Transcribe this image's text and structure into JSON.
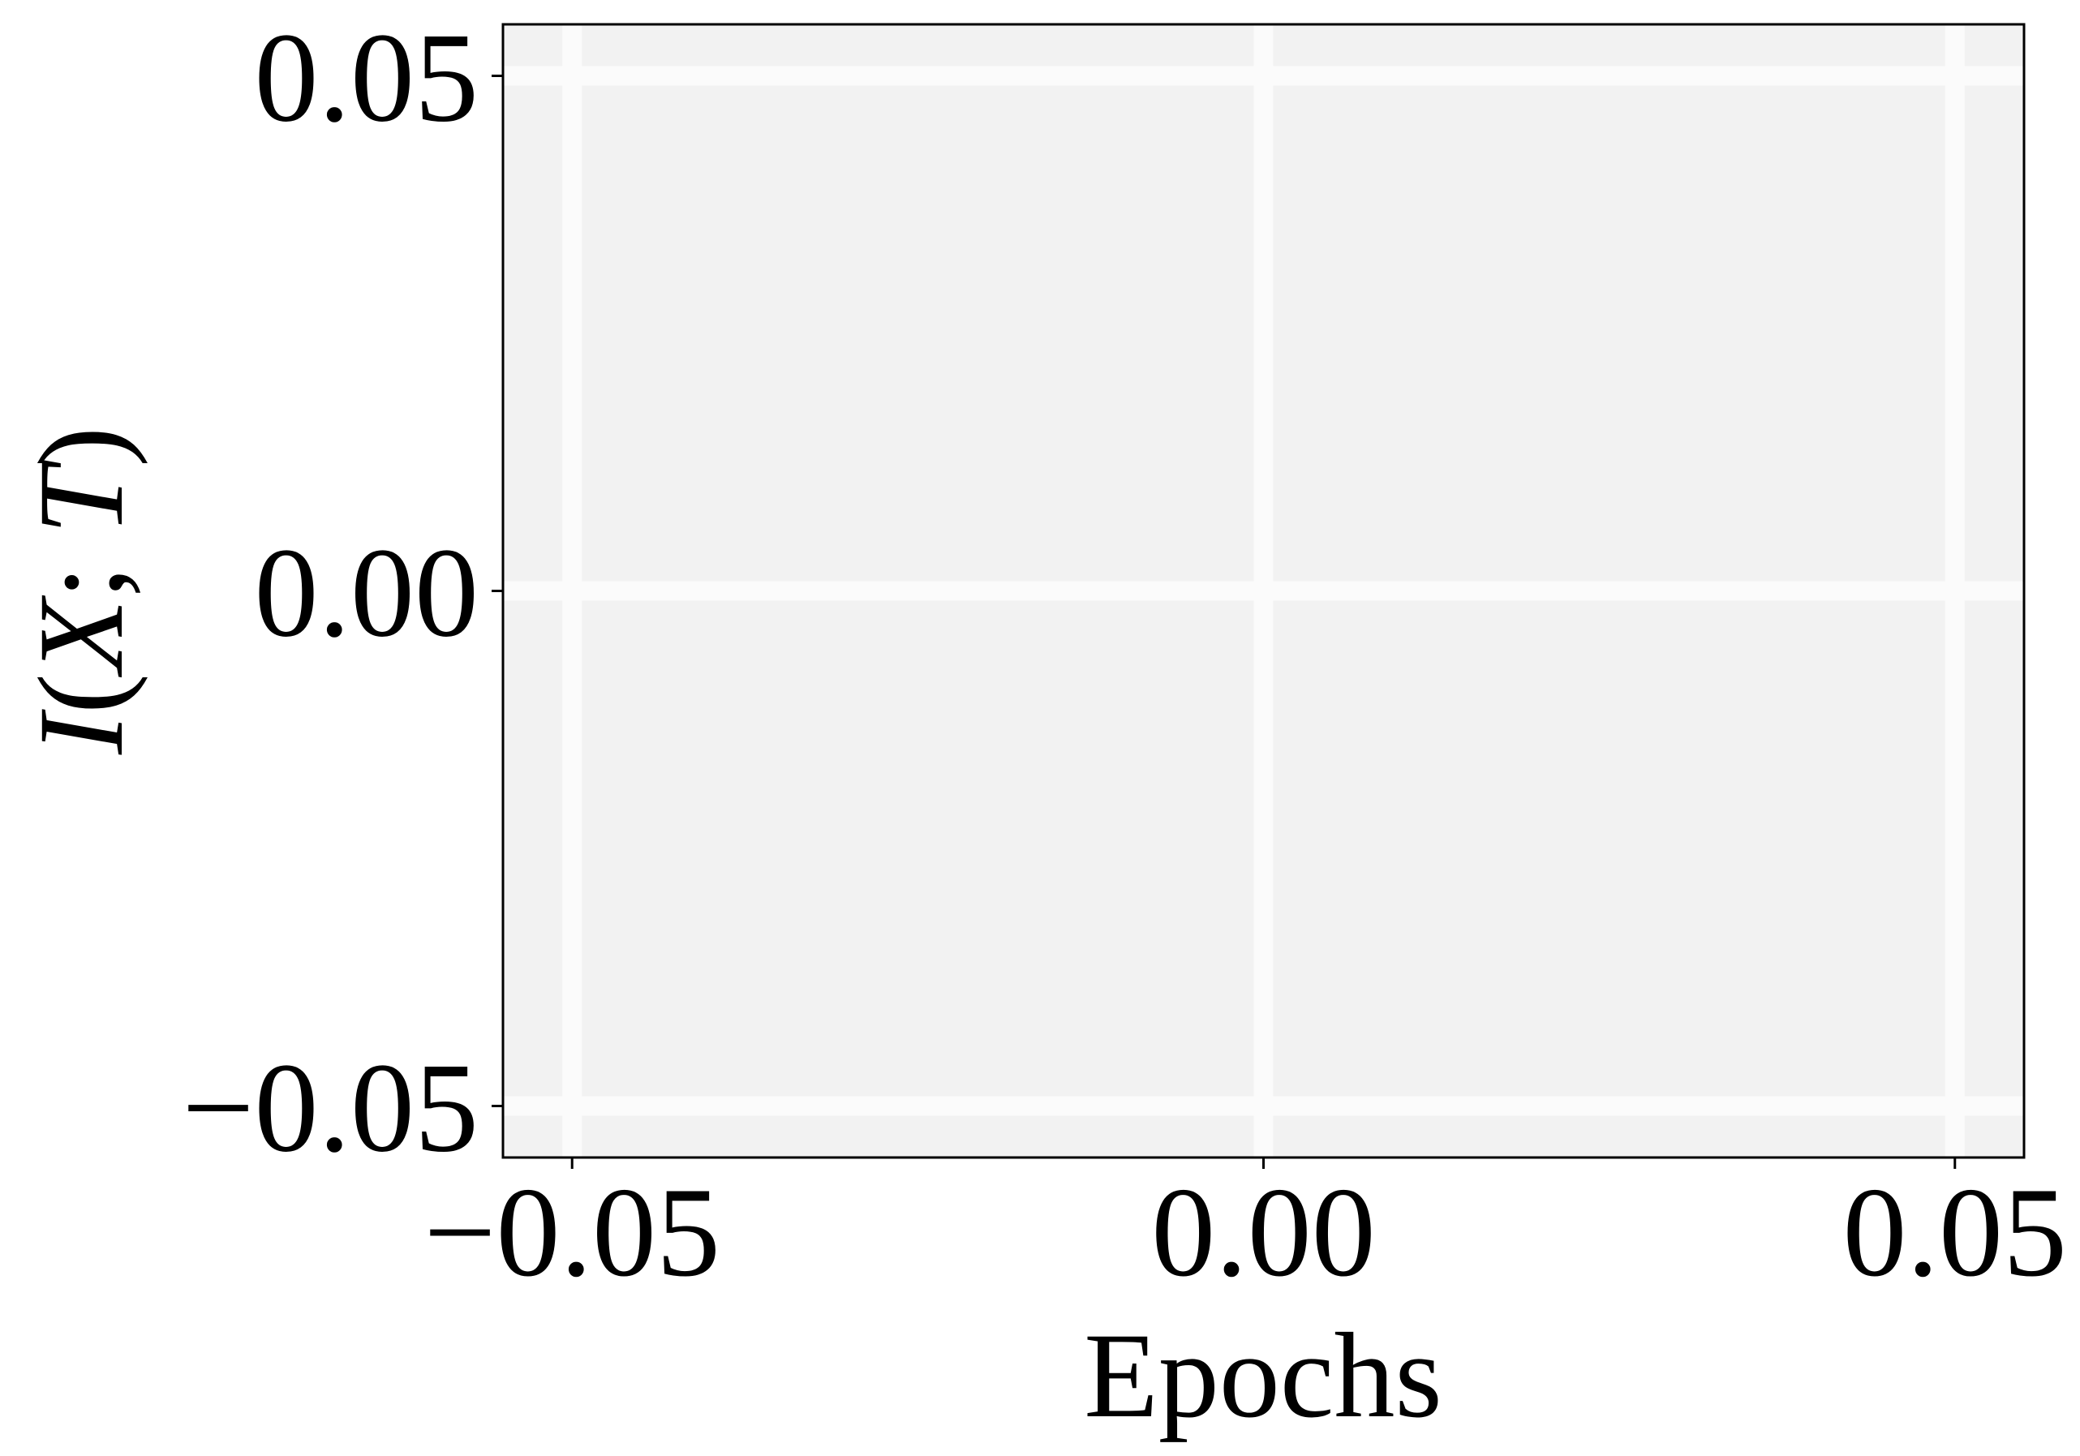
{
  "chart_data": {
    "type": "line",
    "title": "",
    "xlabel": "Epochs",
    "ylabel": {
      "var1": "I",
      "open": "(",
      "var2": "X",
      "sep": "; ",
      "var3": "T",
      "close": ")"
    },
    "xlim": [
      -0.055,
      0.055
    ],
    "ylim": [
      -0.055,
      0.055
    ],
    "x_ticks": [
      -0.05,
      0.0,
      0.05
    ],
    "x_tick_labels": [
      "−0.05",
      "0.00",
      "0.05"
    ],
    "y_ticks": [
      -0.05,
      0.0,
      0.05
    ],
    "y_tick_labels": [
      "−0.05",
      "0.00",
      "0.05"
    ],
    "grid": true,
    "series": [],
    "colors": {
      "plot_background": "#f2f2f2",
      "grid": "#fbfbfb",
      "axes": "#000000"
    }
  }
}
